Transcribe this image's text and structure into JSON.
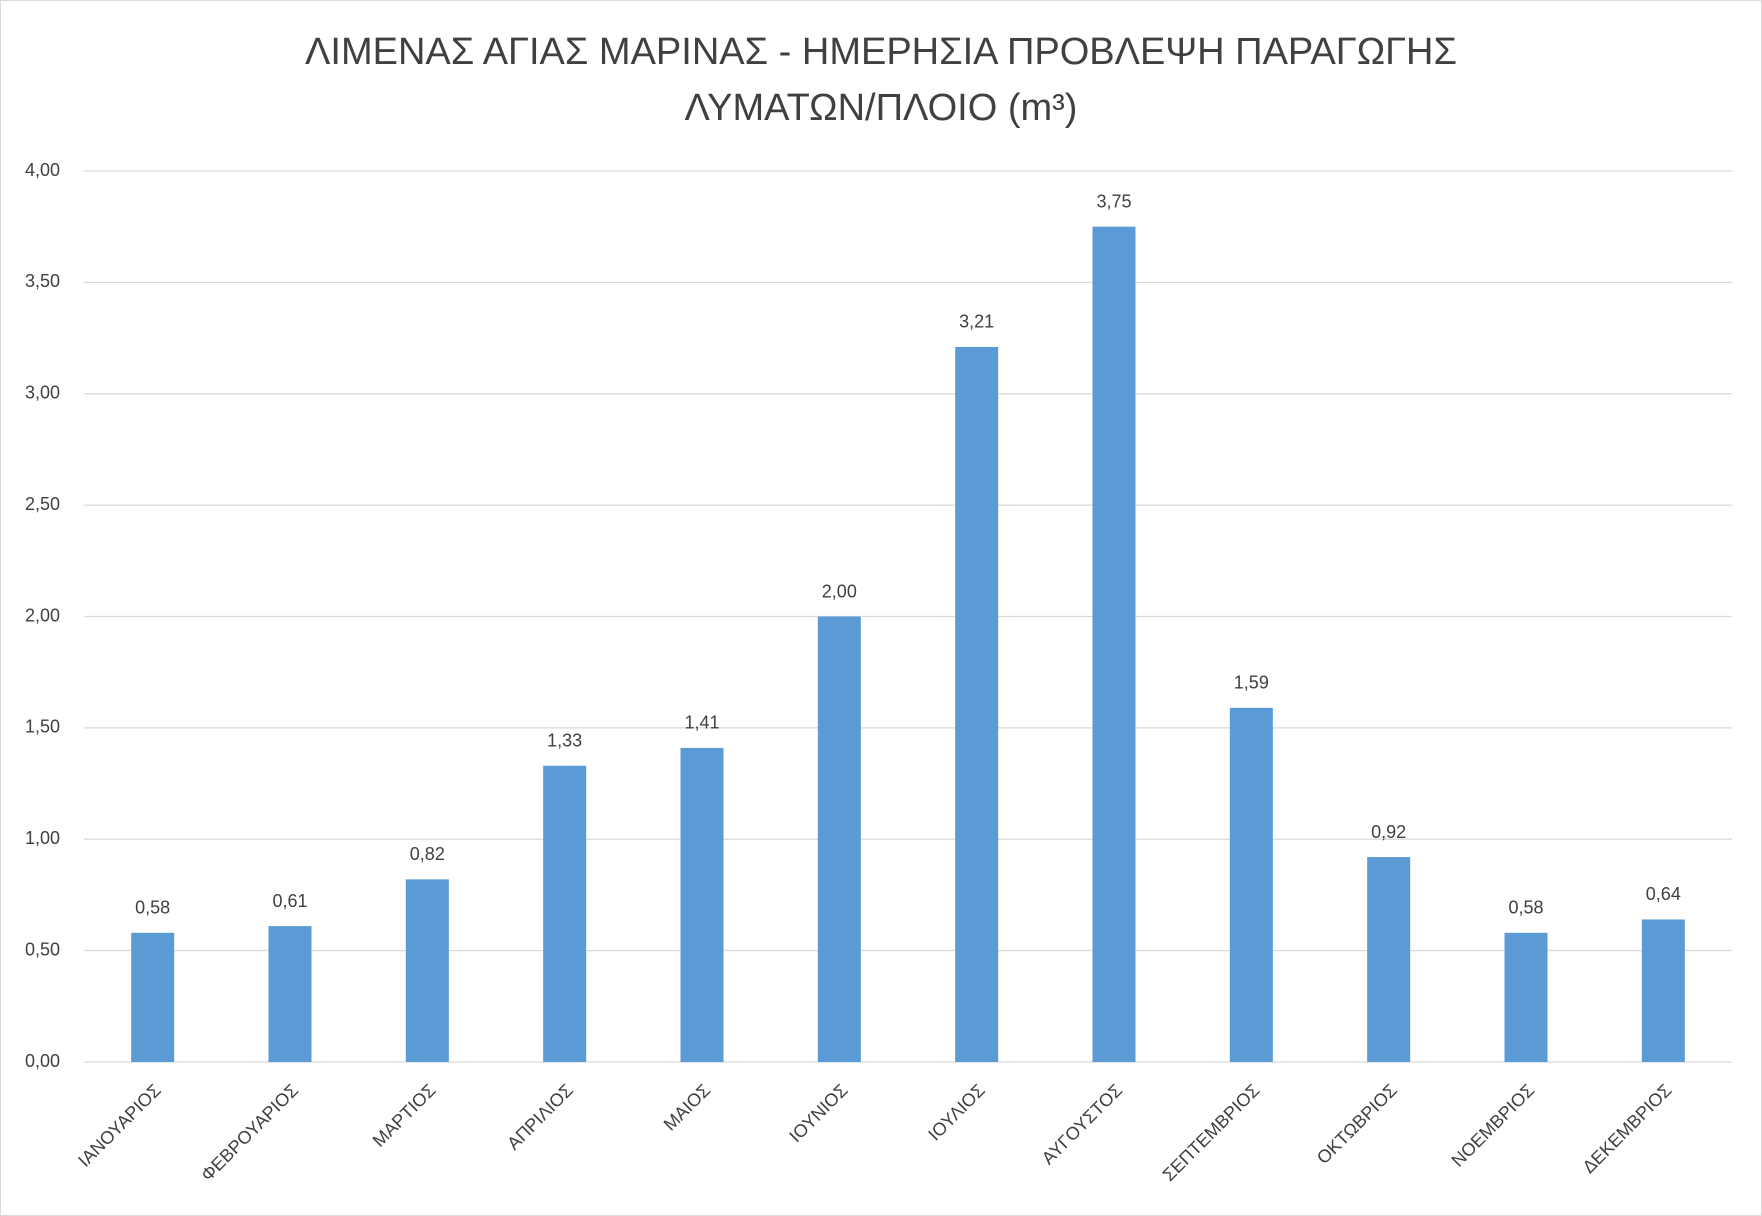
{
  "chart_data": {
    "type": "bar",
    "title": [
      "ΛΙΜΕΝΑΣ ΑΓΙΑΣ ΜΑΡΙΝΑΣ - ΗΜΕΡΗΣΙΑ ΠΡΟΒΛΕΨΗ ΠΑΡΑΓΩΓΗΣ",
      "ΛΥΜΑΤΩΝ/ΠΛΟΙΟ (m³)"
    ],
    "categories": [
      "ΙΑΝΟΥΑΡΙΟΣ",
      "ΦΕΒΡΟΥΑΡΙΟΣ",
      "ΜΑΡΤΙΟΣ",
      "ΑΠΡΙΛΙΟΣ",
      "ΜΑΙΟΣ",
      "ΙΟΥΝΙΟΣ",
      "ΙΟΥΛΙΟΣ",
      "ΑΥΓΟΥΣΤΟΣ",
      "ΣΕΠΤΕΜΒΡΙΟΣ",
      "ΟΚΤΩΒΡΙΟΣ",
      "ΝΟΕΜΒΡΙΟΣ",
      "ΔΕΚΕΜΒΡΙΟΣ"
    ],
    "values": [
      0.58,
      0.61,
      0.82,
      1.33,
      1.41,
      2.0,
      3.21,
      3.75,
      1.59,
      0.92,
      0.58,
      0.64
    ],
    "value_labels": [
      "0,58",
      "0,61",
      "0,82",
      "1,33",
      "1,41",
      "2,00",
      "3,21",
      "3,75",
      "1,59",
      "0,92",
      "0,58",
      "0,64"
    ],
    "color": "#5b9bd5",
    "ylim": [
      0,
      4
    ],
    "yticks": [
      {
        "value": 0,
        "label": "0,00"
      },
      {
        "value": 0.5,
        "label": "0,50"
      },
      {
        "value": 1,
        "label": "1,00"
      },
      {
        "value": 1.5,
        "label": "1,50"
      },
      {
        "value": 2,
        "label": "2,00"
      },
      {
        "value": 2.5,
        "label": "2,50"
      },
      {
        "value": 3,
        "label": "3,00"
      },
      {
        "value": 3.5,
        "label": "3,50"
      },
      {
        "value": 4,
        "label": "4,00"
      }
    ],
    "grid": true
  }
}
